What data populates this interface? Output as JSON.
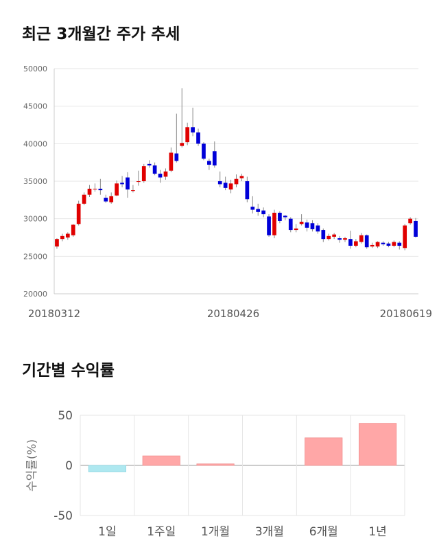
{
  "section1": {
    "title": "최근 3개월간 주가 추세"
  },
  "section2": {
    "title": "기간별 수익률"
  },
  "chart_data": [
    {
      "type": "candlestick",
      "title": "최근 3개월간 주가 추세",
      "ylim": [
        20000,
        50000
      ],
      "yticks": [
        "50000",
        "45000",
        "40000",
        "35000",
        "30000",
        "25000",
        "20000"
      ],
      "xtick_labels": [
        "20180312",
        "20180426",
        "20180619"
      ],
      "colors": {
        "up": "#e00000",
        "down": "#0000d8",
        "wick": "#888888"
      },
      "candles": [
        [
          26300,
          27300,
          26000,
          27400
        ],
        [
          27300,
          27700,
          27000,
          28000
        ],
        [
          27500,
          28000,
          27200,
          28200
        ],
        [
          27800,
          29200,
          27600,
          29300
        ],
        [
          29300,
          32000,
          29100,
          32400
        ],
        [
          32000,
          33200,
          31800,
          33500
        ],
        [
          33200,
          34000,
          32900,
          34500
        ],
        [
          34000,
          34000,
          33600,
          34700
        ],
        [
          34000,
          33800,
          33200,
          35300
        ],
        [
          32800,
          32300,
          32100,
          33200
        ],
        [
          32200,
          33000,
          32000,
          33500
        ],
        [
          33100,
          34700,
          33000,
          35100
        ],
        [
          34800,
          34600,
          34200,
          35700
        ],
        [
          35500,
          33900,
          32800,
          36200
        ],
        [
          33700,
          33800,
          33500,
          34500
        ],
        [
          34900,
          35000,
          34400,
          36400
        ],
        [
          35000,
          37000,
          34800,
          37300
        ],
        [
          37300,
          37100,
          36800,
          37800
        ],
        [
          37100,
          36000,
          35800,
          37500
        ],
        [
          36000,
          35500,
          34800,
          36500
        ],
        [
          35600,
          36300,
          35200,
          36700
        ],
        [
          36400,
          38800,
          36200,
          39500
        ],
        [
          38700,
          37700,
          37500,
          44000
        ],
        [
          39700,
          40100,
          39500,
          47400
        ],
        [
          40200,
          42200,
          39800,
          42800
        ],
        [
          42200,
          41500,
          41000,
          44800
        ],
        [
          41500,
          40000,
          39700,
          42000
        ],
        [
          40000,
          38000,
          37800,
          40200
        ],
        [
          37700,
          37200,
          36500,
          38000
        ],
        [
          39000,
          37100,
          36800,
          40300
        ],
        [
          35000,
          34600,
          34200,
          36300
        ],
        [
          34800,
          34100,
          33800,
          35600
        ],
        [
          33900,
          34700,
          33400,
          35200
        ],
        [
          34600,
          35300,
          34200,
          35900
        ],
        [
          35400,
          35700,
          35000,
          36000
        ],
        [
          35000,
          32600,
          32200,
          35600
        ],
        [
          31600,
          31200,
          30700,
          33000
        ],
        [
          31300,
          30900,
          30400,
          32000
        ],
        [
          31100,
          30600,
          30200,
          31500
        ],
        [
          30300,
          27800,
          27600,
          30600
        ],
        [
          27800,
          30800,
          27400,
          31200
        ],
        [
          30800,
          29700,
          29400,
          31000
        ],
        [
          30400,
          30200,
          29800,
          30500
        ],
        [
          30000,
          28500,
          28200,
          30200
        ],
        [
          28500,
          28700,
          28200,
          29300
        ],
        [
          29300,
          29600,
          29100,
          30600
        ],
        [
          29500,
          28800,
          28300,
          29900
        ],
        [
          29400,
          28600,
          28300,
          29800
        ],
        [
          29100,
          28300,
          28000,
          29400
        ],
        [
          28500,
          27300,
          26900,
          28700
        ],
        [
          27300,
          27700,
          27100,
          28000
        ],
        [
          27600,
          27900,
          27300,
          28100
        ],
        [
          27400,
          27200,
          26800,
          27700
        ],
        [
          27200,
          27400,
          26900,
          27600
        ],
        [
          27300,
          26400,
          26000,
          28400
        ],
        [
          26400,
          27000,
          26200,
          27300
        ],
        [
          26900,
          27800,
          26700,
          28100
        ],
        [
          27800,
          26200,
          26000,
          27900
        ],
        [
          26300,
          26500,
          26100,
          26800
        ],
        [
          26300,
          26900,
          26100,
          27000
        ],
        [
          26800,
          26600,
          26400,
          27000
        ],
        [
          26700,
          26400,
          26200,
          26900
        ],
        [
          26400,
          26900,
          26200,
          27100
        ],
        [
          26800,
          26400,
          25900,
          27000
        ],
        [
          26100,
          29100,
          25800,
          29300
        ],
        [
          29400,
          30000,
          29200,
          30200
        ],
        [
          29700,
          27600,
          27500,
          30100
        ]
      ]
    },
    {
      "type": "bar",
      "title": "기간별 수익률",
      "categories": [
        "1일",
        "1주일",
        "1개월",
        "3개월",
        "6개월",
        "1년"
      ],
      "values": [
        -6.5,
        9.5,
        1.5,
        0.0,
        27.5,
        42.0
      ],
      "ylabel": "수익률(%)",
      "ylim": [
        -50,
        50
      ],
      "yticks": [
        "50",
        "0",
        "-50"
      ],
      "colors": {
        "positive": "#ffa7a7",
        "negative": "#aee8f0"
      }
    }
  ]
}
